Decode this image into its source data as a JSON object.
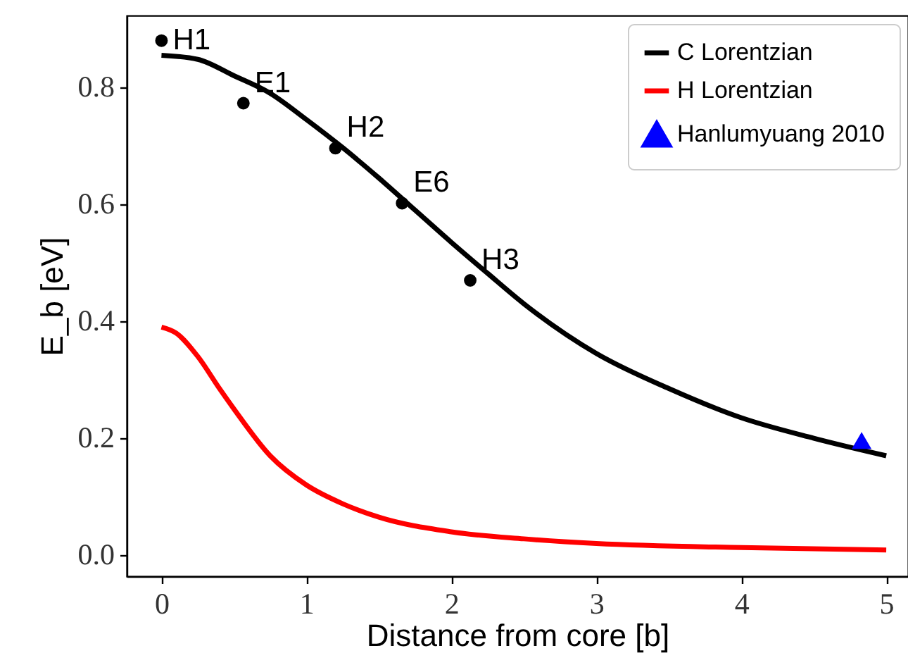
{
  "chart_data": {
    "type": "line",
    "xlabel": "Distance from core [b]",
    "ylabel": "E_b [eV]",
    "xlim": [
      -0.24,
      5.15
    ],
    "ylim": [
      -0.036,
      0.923
    ],
    "xticks": [
      0,
      1,
      2,
      3,
      4,
      5
    ],
    "yticks": [
      {
        "value": 0,
        "label": "0.0"
      },
      {
        "value": 0.2,
        "label": "0.2"
      },
      {
        "value": 0.4,
        "label": "0.4"
      },
      {
        "value": 0.6,
        "label": "0.6"
      },
      {
        "value": 0.8,
        "label": "0.8"
      }
    ],
    "grid": false,
    "legend": "top right",
    "series": [
      {
        "name": "C Lorentzian",
        "color": "#000000",
        "marker": "none",
        "line_style": "solid",
        "x": [
          0,
          0.25,
          0.5,
          0.75,
          1,
          1.25,
          1.5,
          1.75,
          2,
          2.25,
          2.5,
          3,
          3.5,
          4,
          4.5,
          5
        ],
        "values": [
          0.855,
          0.848,
          0.82,
          0.79,
          0.745,
          0.697,
          0.645,
          0.59,
          0.535,
          0.482,
          0.43,
          0.345,
          0.285,
          0.235,
          0.2,
          0.17
        ]
      },
      {
        "name": "H Lorentzian",
        "color": "#ff0000",
        "marker": "none",
        "line_style": "solid",
        "x": [
          0,
          0.1,
          0.25,
          0.4,
          0.5,
          0.75,
          1,
          1.25,
          1.5,
          2,
          2.5,
          3,
          4,
          5
        ],
        "values": [
          0.39,
          0.38,
          0.34,
          0.285,
          0.25,
          0.17,
          0.12,
          0.088,
          0.065,
          0.04,
          0.028,
          0.02,
          0.013,
          0.009
        ]
      },
      {
        "type": "scatter",
        "color": "#000000",
        "marker": "circle",
        "x": [
          0,
          0.565,
          1.2,
          1.66,
          2.13
        ],
        "values": [
          0.88,
          0.773,
          0.696,
          0.602,
          0.47
        ]
      },
      {
        "name": "Hanlumyuang 2010",
        "type": "scatter",
        "color": "#0000ff",
        "marker": "triangle",
        "x": [
          4.83
        ],
        "values": [
          0.195
        ]
      }
    ],
    "annotations": [
      {
        "text": "H1",
        "x": 0,
        "y": 0.88
      },
      {
        "text": "E1",
        "x": 0.565,
        "y": 0.773
      },
      {
        "text": "H2",
        "x": 1.2,
        "y": 0.696
      },
      {
        "text": "E6",
        "x": 1.66,
        "y": 0.602
      },
      {
        "text": "H3",
        "x": 2.13,
        "y": 0.47
      }
    ]
  }
}
